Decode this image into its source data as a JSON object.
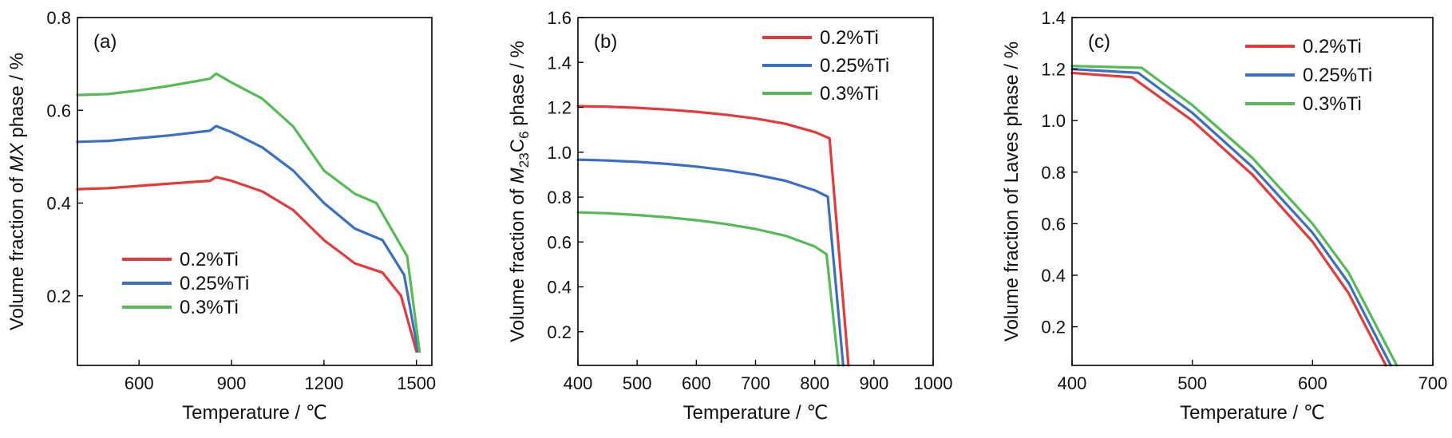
{
  "colors": {
    "red": "#e63a3a",
    "blue": "#3a6fc4",
    "green": "#55bb55"
  },
  "chart_data": [
    {
      "type": "line",
      "panel_label": "(a)",
      "xlabel": "Temperature / ℃",
      "ylabel_parts": [
        {
          "t": "Volume fraction of "
        },
        {
          "t": "MX",
          "style": "italic"
        },
        {
          "t": " phase / %"
        }
      ],
      "xlim": [
        400,
        1550
      ],
      "ylim": [
        0.05,
        0.8
      ],
      "xticks": [
        600,
        900,
        1200,
        1500
      ],
      "yticks": [
        0.2,
        0.4,
        0.6,
        0.8
      ],
      "legend_position": "bottom-left",
      "series": [
        {
          "name": "0.2%Ti",
          "color": "#e63a3a",
          "x": [
            400,
            500,
            600,
            700,
            830,
            850,
            900,
            1000,
            1100,
            1200,
            1300,
            1390,
            1450,
            1500
          ],
          "y": [
            0.43,
            0.432,
            0.437,
            0.442,
            0.448,
            0.456,
            0.448,
            0.425,
            0.385,
            0.32,
            0.27,
            0.25,
            0.2,
            0.08
          ]
        },
        {
          "name": "0.25%Ti",
          "color": "#3a6fc4",
          "x": [
            400,
            500,
            600,
            700,
            830,
            850,
            900,
            1000,
            1100,
            1200,
            1300,
            1390,
            1460,
            1505
          ],
          "y": [
            0.532,
            0.534,
            0.54,
            0.546,
            0.556,
            0.566,
            0.553,
            0.52,
            0.47,
            0.4,
            0.345,
            0.32,
            0.245,
            0.08
          ]
        },
        {
          "name": "0.3%Ti",
          "color": "#55bb55",
          "x": [
            400,
            500,
            600,
            700,
            830,
            850,
            900,
            1000,
            1100,
            1200,
            1300,
            1370,
            1470,
            1510
          ],
          "y": [
            0.633,
            0.635,
            0.643,
            0.653,
            0.668,
            0.679,
            0.66,
            0.625,
            0.565,
            0.47,
            0.42,
            0.4,
            0.285,
            0.08
          ]
        }
      ]
    },
    {
      "type": "line",
      "panel_label": "(b)",
      "xlabel": "Temperature / ℃",
      "ylabel_parts": [
        {
          "t": "Volume fraction of "
        },
        {
          "t": "M",
          "style": "italic"
        },
        {
          "t": "23",
          "style": "sub"
        },
        {
          "t": "C"
        },
        {
          "t": "6",
          "style": "sub"
        },
        {
          "t": " phase / %"
        }
      ],
      "xlim": [
        400,
        1000
      ],
      "ylim": [
        0.05,
        1.6
      ],
      "xticks": [
        400,
        500,
        600,
        700,
        800,
        900,
        1000
      ],
      "yticks": [
        0.2,
        0.4,
        0.6,
        0.8,
        1.0,
        1.2,
        1.4,
        1.6
      ],
      "legend_position": "top-right",
      "series": [
        {
          "name": "0.2%Ti",
          "color": "#e63a3a",
          "x": [
            400,
            450,
            500,
            550,
            600,
            650,
            700,
            750,
            800,
            825,
            857
          ],
          "y": [
            1.205,
            1.203,
            1.198,
            1.19,
            1.18,
            1.167,
            1.15,
            1.127,
            1.09,
            1.062,
            0.05
          ]
        },
        {
          "name": "0.25%Ti",
          "color": "#3a6fc4",
          "x": [
            400,
            450,
            500,
            550,
            600,
            650,
            700,
            750,
            800,
            822,
            848
          ],
          "y": [
            0.967,
            0.963,
            0.957,
            0.948,
            0.936,
            0.92,
            0.9,
            0.873,
            0.83,
            0.802,
            0.05
          ]
        },
        {
          "name": "0.3%Ti",
          "color": "#55bb55",
          "x": [
            400,
            450,
            500,
            550,
            600,
            650,
            700,
            750,
            800,
            820,
            840
          ],
          "y": [
            0.732,
            0.728,
            0.72,
            0.71,
            0.697,
            0.68,
            0.658,
            0.628,
            0.58,
            0.545,
            0.05
          ]
        }
      ]
    },
    {
      "type": "line",
      "panel_label": "(c)",
      "xlabel": "Temperature / ℃",
      "ylabel_parts": [
        {
          "t": "Volume fraction of Laves phase / %"
        }
      ],
      "xlim": [
        400,
        700
      ],
      "ylim": [
        0.05,
        1.4
      ],
      "xticks": [
        400,
        500,
        600,
        700
      ],
      "yticks": [
        0.2,
        0.4,
        0.6,
        0.8,
        1.0,
        1.2,
        1.4
      ],
      "legend_position": "top-right",
      "series": [
        {
          "name": "0.2%Ti",
          "color": "#e63a3a",
          "x": [
            400,
            450,
            500,
            550,
            600,
            630,
            661
          ],
          "y": [
            1.185,
            1.168,
            1.0,
            0.79,
            0.53,
            0.33,
            0.05
          ]
        },
        {
          "name": "0.25%Ti",
          "color": "#3a6fc4",
          "x": [
            400,
            455,
            500,
            550,
            600,
            630,
            665
          ],
          "y": [
            1.2,
            1.185,
            1.03,
            0.82,
            0.565,
            0.37,
            0.05
          ]
        },
        {
          "name": "0.3%Ti",
          "color": "#55bb55",
          "x": [
            400,
            458,
            500,
            550,
            600,
            630,
            670
          ],
          "y": [
            1.212,
            1.205,
            1.06,
            0.855,
            0.6,
            0.41,
            0.05
          ]
        }
      ]
    }
  ]
}
